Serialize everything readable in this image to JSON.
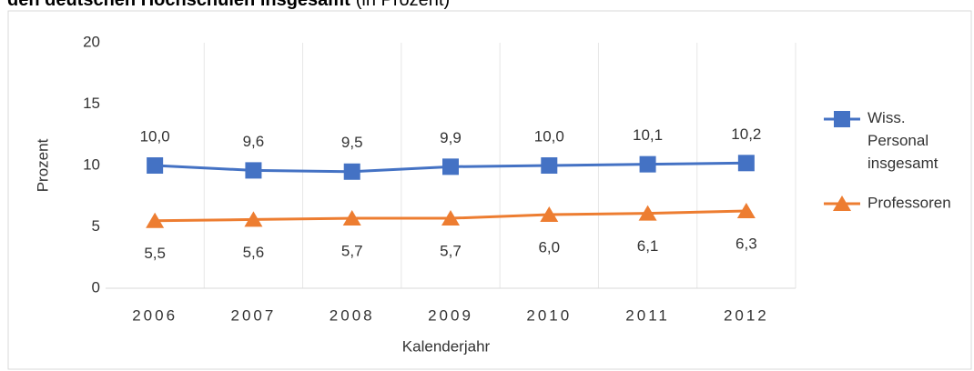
{
  "chart_data": {
    "type": "line",
    "title": "den deutschen Hochschulen insgesamt",
    "subtitle": "(in Prozent)",
    "categories": [
      "2006",
      "2007",
      "2008",
      "2009",
      "2010",
      "2011",
      "2012"
    ],
    "series": [
      {
        "name": "Wiss. Personal insgesamt",
        "color": "#4472c4",
        "marker": "square",
        "values": [
          10.0,
          9.6,
          9.5,
          9.9,
          10.0,
          10.1,
          10.2
        ],
        "value_labels": [
          "10,0",
          "9,6",
          "9,5",
          "9,9",
          "10,0",
          "10,1",
          "10,2"
        ]
      },
      {
        "name": "Professoren",
        "color": "#ed7d31",
        "marker": "triangle",
        "values": [
          5.5,
          5.6,
          5.7,
          5.7,
          6.0,
          6.1,
          6.3
        ],
        "value_labels": [
          "5,5",
          "5,6",
          "5,7",
          "5,7",
          "6,0",
          "6,1",
          "6,3"
        ]
      }
    ],
    "ylim": [
      0,
      20
    ],
    "yticks": [
      0,
      5,
      10,
      15,
      20
    ],
    "ylabel": "Prozent",
    "xlabel": "Kalenderjahr",
    "legend": "right"
  }
}
